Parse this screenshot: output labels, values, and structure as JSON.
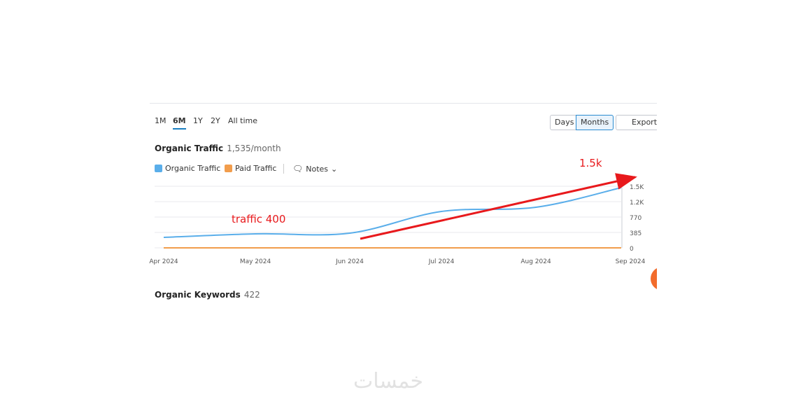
{
  "toolbar": {
    "periods": [
      "1M",
      "6M",
      "1Y",
      "2Y",
      "All time"
    ],
    "active_period": "6M",
    "views": [
      "Days",
      "Months"
    ],
    "active_view": "Months",
    "export": "Export"
  },
  "metric": {
    "title": "Organic Traffic",
    "value": "1,535/month"
  },
  "legend": {
    "notes": "Notes"
  },
  "chart_data": {
    "type": "line",
    "categories": [
      "Apr 2024",
      "May 2024",
      "Jun 2024",
      "Jul 2024",
      "Aug 2024",
      "Sep 2024"
    ],
    "series": [
      {
        "name": "Organic Traffic",
        "color": "#5aaeea",
        "values": [
          262,
          350,
          368,
          910,
          1015,
          1505
        ]
      },
      {
        "name": "Paid Traffic",
        "color": "#f29d4c",
        "values": [
          0,
          0,
          0,
          0,
          0,
          0
        ]
      }
    ],
    "ylim": [
      0,
      1540
    ],
    "yticks": [
      0,
      385,
      770,
      {
        "value": 1155,
        "label": "1.2K"
      },
      {
        "value": 1540,
        "label": "1.5K"
      }
    ],
    "grid": true,
    "annotations": [
      "traffic 400",
      "1.5k"
    ]
  },
  "keywords": {
    "title": "Organic Keywords",
    "value": "422"
  },
  "watermark": "خمسات"
}
